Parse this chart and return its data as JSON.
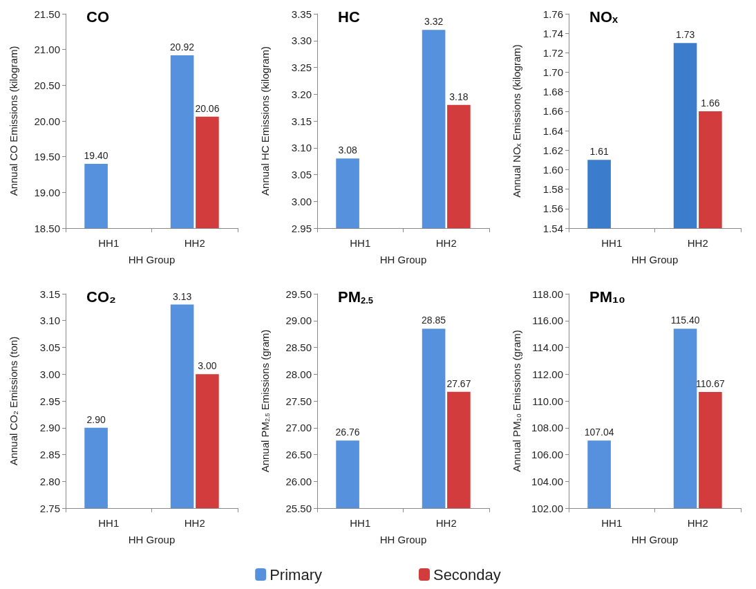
{
  "chart_data": [
    {
      "type": "bar",
      "title": "CO",
      "xlabel": "HH Group",
      "ylabel": "Annual CO Emissions (kilogram)",
      "categories": [
        "HH1",
        "HH2"
      ],
      "series": [
        {
          "name": "Primary",
          "color": "#5591dc",
          "values": [
            19.4,
            20.92
          ],
          "value_labels": [
            "19.40",
            "20.92"
          ]
        },
        {
          "name": "Seconday",
          "color": "#d23c3c",
          "values": [
            null,
            20.06
          ],
          "value_labels": [
            null,
            "20.06"
          ]
        }
      ],
      "ylim": [
        18.5,
        21.5
      ],
      "yticks": [
        {
          "value": 18.5,
          "label": "18.50"
        },
        {
          "value": 19,
          "label": "19.00"
        },
        {
          "value": 19.5,
          "label": "19.50"
        },
        {
          "value": 20,
          "label": "20.00"
        },
        {
          "value": 20.5,
          "label": "20.50"
        },
        {
          "value": 21,
          "label": "21.00"
        },
        {
          "value": 21.5,
          "label": "21.50"
        }
      ],
      "grid": false,
      "legend": "bottom"
    },
    {
      "type": "bar",
      "title": "HC",
      "xlabel": "HH Group",
      "ylabel": "Annual HC Emissions (kilogram)",
      "categories": [
        "HH1",
        "HH2"
      ],
      "series": [
        {
          "color": "#5591dc",
          "values": [
            3.08,
            3.32
          ],
          "value_labels": [
            "3.08",
            "3.32"
          ]
        },
        {
          "color": "#d23c3c",
          "values": [
            null,
            3.18
          ],
          "value_labels": [
            null,
            "3.18"
          ]
        }
      ],
      "ylim": [
        2.95,
        3.35
      ],
      "yticks": [
        {
          "value": 2.95,
          "label": "2.95"
        },
        {
          "value": 3,
          "label": "3.00"
        },
        {
          "value": 3.05,
          "label": "3.05"
        },
        {
          "value": 3.1,
          "label": "3.10"
        },
        {
          "value": 3.15,
          "label": "3.15"
        },
        {
          "value": 3.2,
          "label": "3.20"
        },
        {
          "value": 3.25,
          "label": "3.25"
        },
        {
          "value": 3.3,
          "label": "3.30"
        },
        {
          "value": 3.35,
          "label": "3.35"
        }
      ],
      "grid": false
    },
    {
      "type": "bar",
      "title": "NOₓ",
      "xlabel": "HH Group",
      "ylabel": "Annual NOₓ Emissions (kilogram)",
      "categories": [
        "HH1",
        "HH2"
      ],
      "series": [
        {
          "color": "#3c7ccc",
          "values": [
            1.61,
            1.73
          ],
          "value_labels": [
            "1.61",
            "1.73"
          ]
        },
        {
          "color": "#d23c3c",
          "values": [
            null,
            1.66
          ],
          "value_labels": [
            null,
            "1.66"
          ]
        }
      ],
      "ylim": [
        1.54,
        1.76
      ],
      "yticks": [
        {
          "value": 1.54,
          "label": "1.54"
        },
        {
          "value": 1.56,
          "label": "1.56"
        },
        {
          "value": 1.58,
          "label": "1.58"
        },
        {
          "value": 1.6,
          "label": "1.60"
        },
        {
          "value": 1.62,
          "label": "1.62"
        },
        {
          "value": 1.64,
          "label": "1.64"
        },
        {
          "value": 1.66,
          "label": "1.66"
        },
        {
          "value": 1.68,
          "label": "1.68"
        },
        {
          "value": 1.7,
          "label": "1.70"
        },
        {
          "value": 1.72,
          "label": "1.72"
        },
        {
          "value": 1.74,
          "label": "1.74"
        },
        {
          "value": 1.76,
          "label": "1.76"
        }
      ],
      "grid": false
    },
    {
      "type": "bar",
      "title": "CO₂",
      "xlabel": "HH Group",
      "ylabel": "Annual CO₂ Emissions (ton)",
      "categories": [
        "HH1",
        "HH2"
      ],
      "series": [
        {
          "color": "#5591dc",
          "values": [
            2.9,
            3.13
          ],
          "value_labels": [
            "2.90",
            "3.13"
          ]
        },
        {
          "color": "#d23c3c",
          "values": [
            null,
            3.0
          ],
          "value_labels": [
            null,
            "3.00"
          ]
        }
      ],
      "ylim": [
        2.75,
        3.15
      ],
      "yticks": [
        {
          "value": 2.75,
          "label": "2.75"
        },
        {
          "value": 2.8,
          "label": "2.80"
        },
        {
          "value": 2.85,
          "label": "2.85"
        },
        {
          "value": 2.9,
          "label": "2.90"
        },
        {
          "value": 2.95,
          "label": "2.95"
        },
        {
          "value": 3,
          "label": "3.00"
        },
        {
          "value": 3.05,
          "label": "3.05"
        },
        {
          "value": 3.1,
          "label": "3.10"
        },
        {
          "value": 3.15,
          "label": "3.15"
        }
      ],
      "grid": false
    },
    {
      "type": "bar",
      "title": "PM$_{2.5}$",
      "xlabel": "HH Group",
      "ylabel": "Annual PM$_{2.5}$ Emissions (gram)",
      "categories": [
        "HH1",
        "HH2"
      ],
      "series": [
        {
          "color": "#5591dc",
          "values": [
            26.76,
            28.85
          ],
          "value_labels": [
            "26.76",
            "28.85"
          ]
        },
        {
          "color": "#d23c3c",
          "values": [
            null,
            27.67
          ],
          "value_labels": [
            null,
            "27.67"
          ]
        }
      ],
      "ylim": [
        25.5,
        29.5
      ],
      "yticks": [
        {
          "value": 25.5,
          "label": "25.50"
        },
        {
          "value": 26,
          "label": "26.00"
        },
        {
          "value": 26.5,
          "label": "26.50"
        },
        {
          "value": 27,
          "label": "27.00"
        },
        {
          "value": 27.5,
          "label": "27.50"
        },
        {
          "value": 28,
          "label": "28.00"
        },
        {
          "value": 28.5,
          "label": "28.50"
        },
        {
          "value": 29,
          "label": "29.00"
        },
        {
          "value": 29.5,
          "label": "29.50"
        }
      ],
      "grid": false
    },
    {
      "type": "bar",
      "title": "PM₁₀",
      "xlabel": "HH Group",
      "ylabel": "Annual PM₁₀ Emissions (gram)",
      "categories": [
        "HH1",
        "HH2"
      ],
      "series": [
        {
          "color": "#5591dc",
          "values": [
            107.04,
            115.4
          ],
          "value_labels": [
            "107.04",
            "115.40"
          ]
        },
        {
          "color": "#d23c3c",
          "values": [
            null,
            110.67
          ],
          "value_labels": [
            null,
            "110.67"
          ]
        }
      ],
      "ylim": [
        102,
        118
      ],
      "yticks": [
        {
          "value": 102,
          "label": "102.00"
        },
        {
          "value": 104,
          "label": "104.00"
        },
        {
          "value": 106,
          "label": "106.00"
        },
        {
          "value": 108,
          "label": "108.00"
        },
        {
          "value": 110,
          "label": "110.00"
        },
        {
          "value": 112,
          "label": "112.00"
        },
        {
          "value": 114,
          "label": "114.00"
        },
        {
          "value": 116,
          "label": "116.00"
        },
        {
          "value": 118,
          "label": "118.00"
        }
      ],
      "grid": false
    }
  ]
}
